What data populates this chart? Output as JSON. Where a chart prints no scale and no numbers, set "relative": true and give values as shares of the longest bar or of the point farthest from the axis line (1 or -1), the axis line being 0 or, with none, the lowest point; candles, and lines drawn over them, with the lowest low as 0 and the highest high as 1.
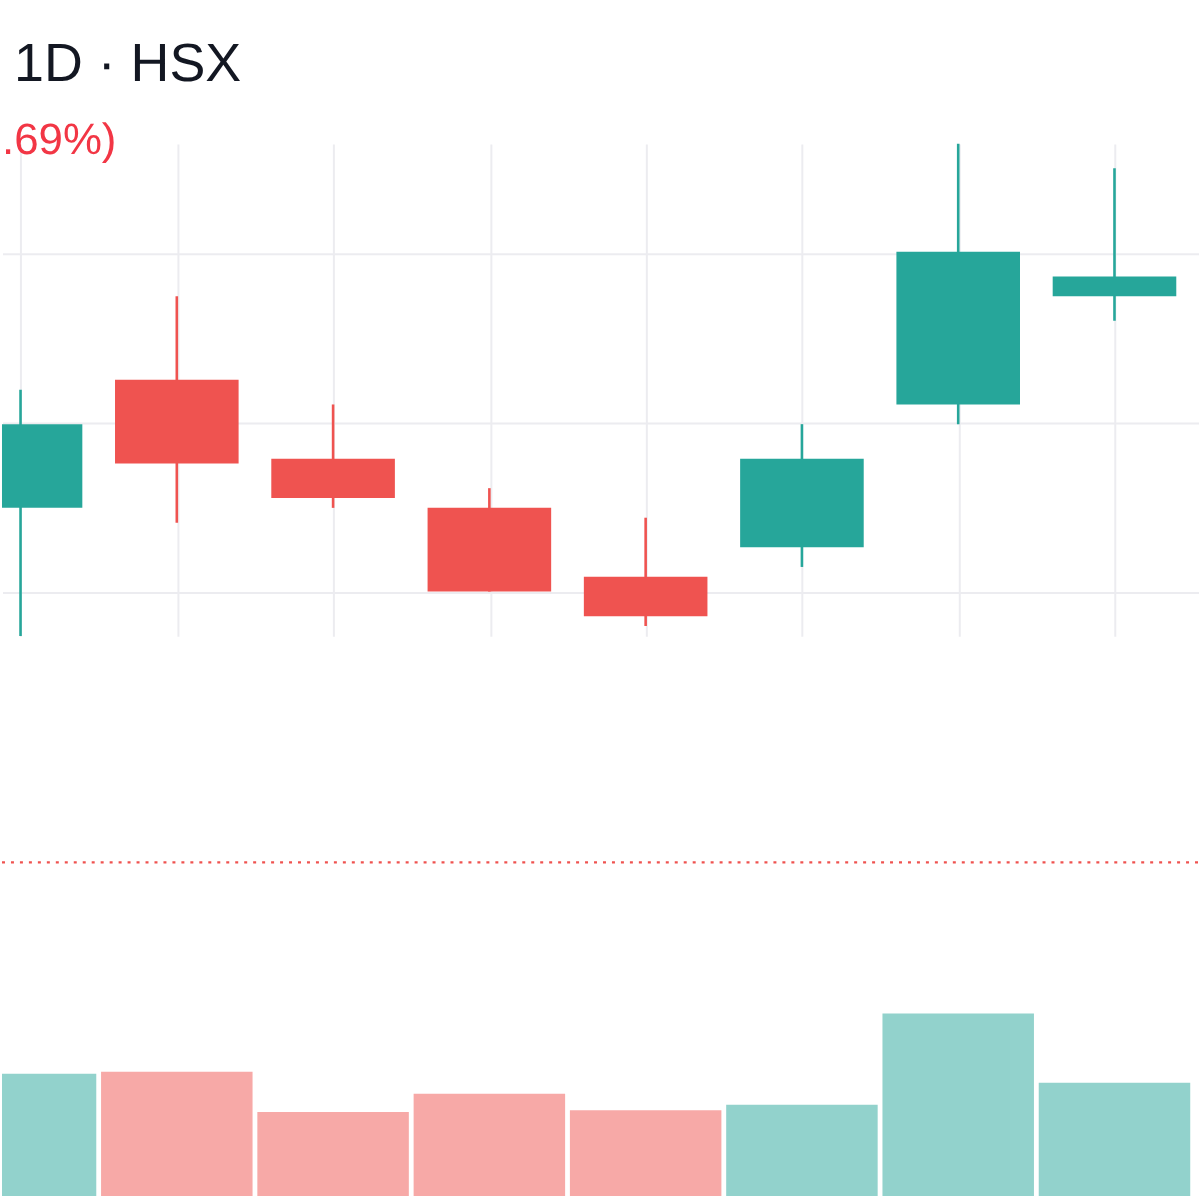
{
  "chart_data": [
    {
      "type": "candlestick",
      "title": "1D · HSX",
      "annotations": [
        ".69%)"
      ],
      "relative": true,
      "categories": [
        null,
        null,
        null,
        null,
        null,
        null,
        null,
        null
      ],
      "ohlc": [
        [
          0.26,
          0.5,
          0,
          0.43
        ],
        [
          0.52,
          0.69,
          0.23,
          0.35
        ],
        [
          0.36,
          0.47,
          0.26,
          0.28
        ],
        [
          0.26,
          0.3,
          0.09,
          0.09
        ],
        [
          0.12,
          0.24,
          0.02,
          0.04
        ],
        [
          0.18,
          0.43,
          0.14,
          0.36
        ],
        [
          0.47,
          1,
          0.43,
          0.78
        ],
        [
          0.69,
          0.95,
          0.64,
          0.73
        ]
      ],
      "colors": [
        "#26a69a",
        "#ef5350",
        "#ef5350",
        "#ef5350",
        "#ef5350",
        "#26a69a",
        "#26a69a",
        "#26a69a"
      ],
      "ref_lines": [
        {
          "axis": "y",
          "value": -0.46,
          "color": "#ef5350",
          "line_style": "dotted"
        }
      ],
      "grid": true,
      "tick_labels": false
    },
    {
      "type": "bar",
      "relative": true,
      "categories": [
        null,
        null,
        null,
        null,
        null,
        null,
        null,
        null
      ],
      "values": [
        0.67,
        0.68,
        0.46,
        0.56,
        0.47,
        0.5,
        1,
        0.62
      ],
      "colors": [
        "#92d2cc",
        "#f7a9a7",
        "#f7a9a7",
        "#f7a9a7",
        "#f7a9a7",
        "#92d2cc",
        "#92d2cc",
        "#92d2cc"
      ],
      "tick_labels": false
    }
  ]
}
